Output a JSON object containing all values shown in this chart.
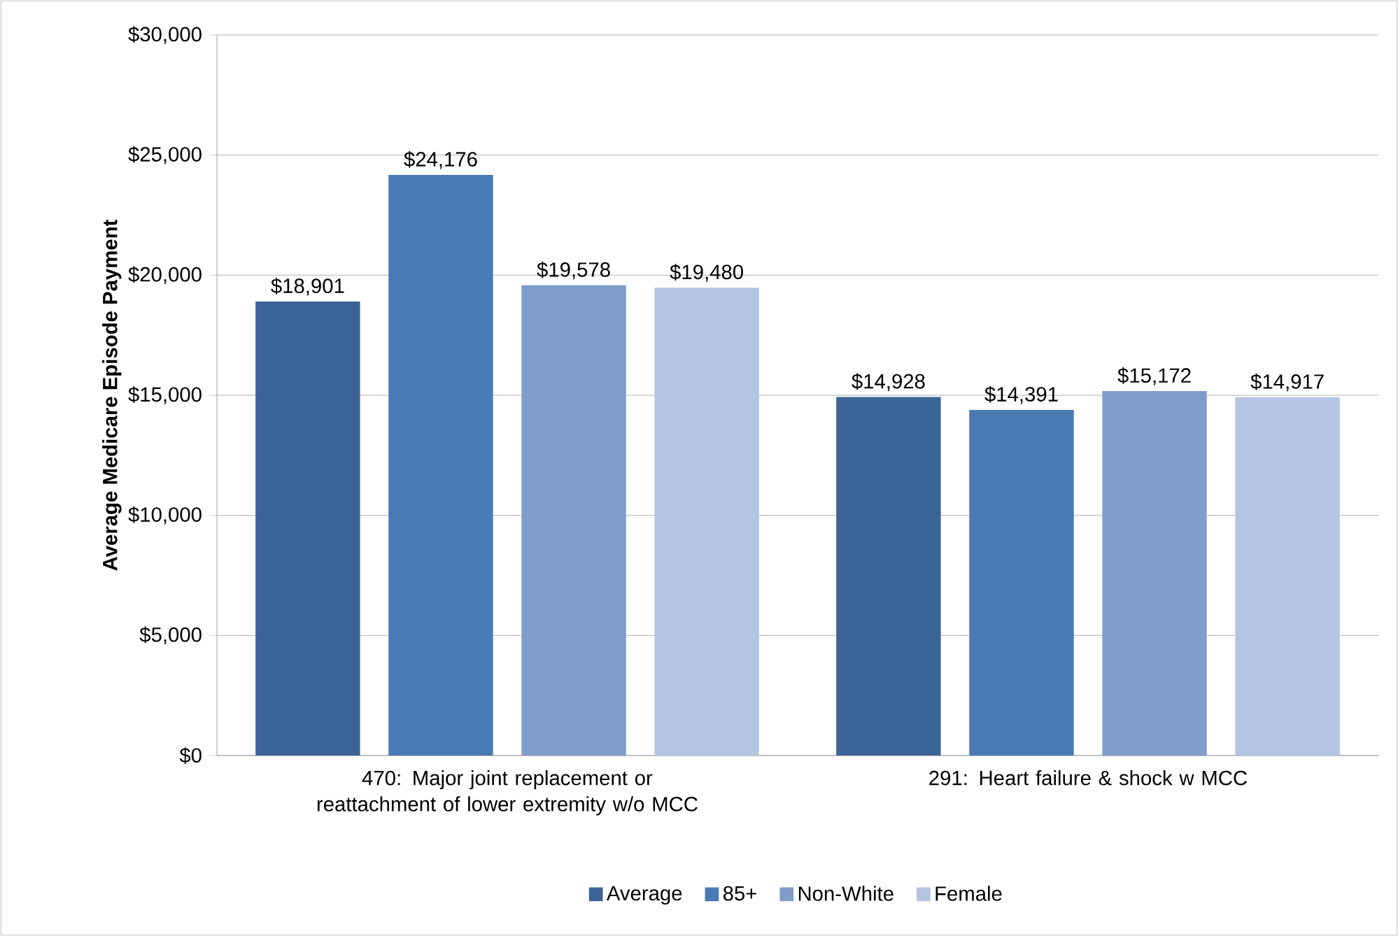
{
  "chart_data": {
    "type": "bar",
    "ylabel": "Average Medicare Episode Payment",
    "categories": [
      "470: Major joint replacement or reattachment of lower extremity w/o MCC",
      "291: Heart failure & shock w MCC"
    ],
    "series": [
      {
        "name": "Average",
        "color": "#3c6496",
        "values": [
          18901,
          14928
        ],
        "value_labels": [
          "$18,901",
          "$14,928"
        ]
      },
      {
        "name": "85+",
        "color": "#4a7ab4",
        "values": [
          24176,
          14391
        ],
        "value_labels": [
          "$24,176",
          "$14,391"
        ]
      },
      {
        "name": "Non-White",
        "color": "#7f9dc8",
        "values": [
          19578,
          15172
        ],
        "value_labels": [
          "$19,578",
          "$15,172"
        ]
      },
      {
        "name": "Female",
        "color": "#b5c4e0",
        "values": [
          19480,
          14917
        ],
        "value_labels": [
          "$19,480",
          "$14,917"
        ]
      }
    ],
    "ylim": [
      0,
      30000
    ],
    "yticks": [
      {
        "value": 0,
        "label": "$0"
      },
      {
        "value": 5000,
        "label": "$5,000"
      },
      {
        "value": 10000,
        "label": "$10,000"
      },
      {
        "value": 15000,
        "label": "$15,000"
      },
      {
        "value": 20000,
        "label": "$20,000"
      },
      {
        "value": 25000,
        "label": "$25,000"
      },
      {
        "value": 30000,
        "label": "$30,000"
      }
    ],
    "grid": "y",
    "legend": "bottom"
  }
}
